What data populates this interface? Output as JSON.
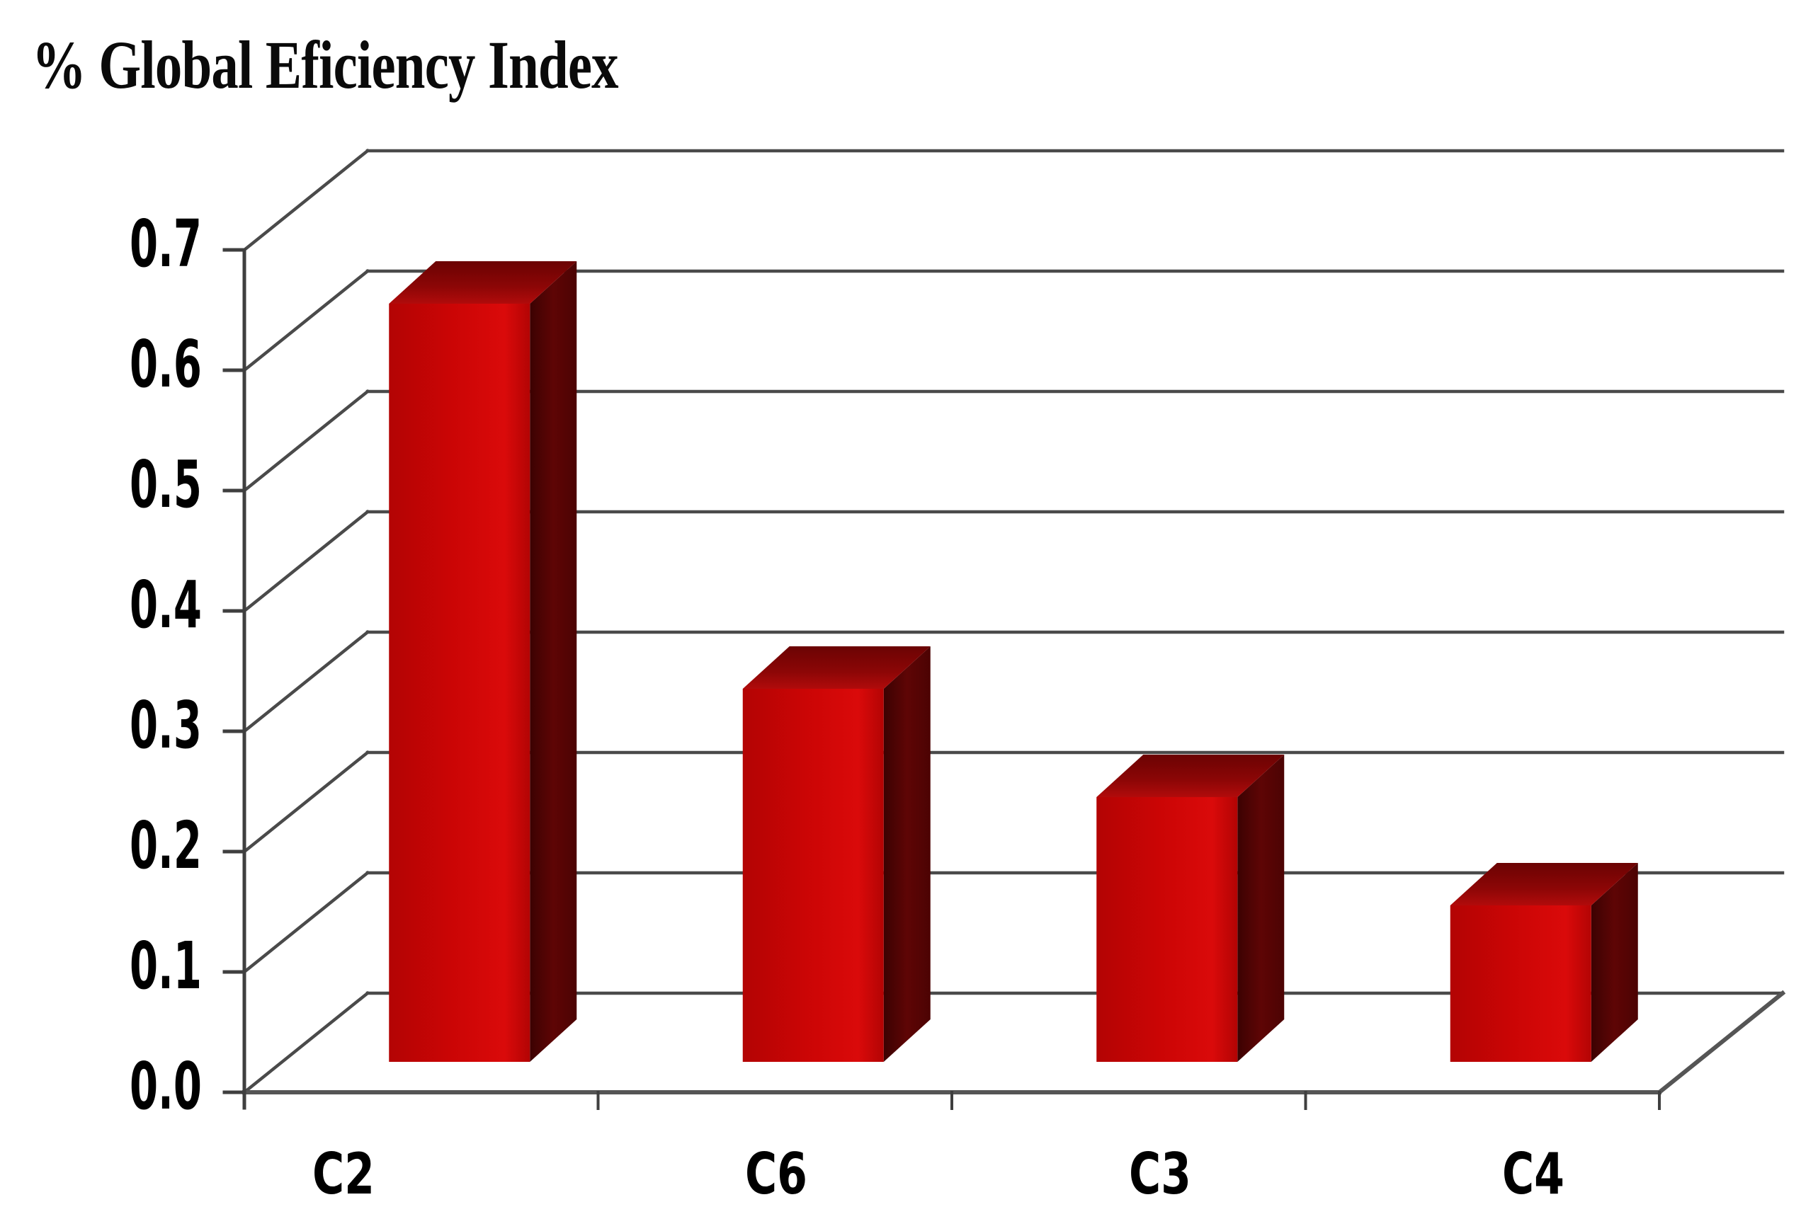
{
  "chart_data": {
    "type": "bar",
    "style": "3d-column",
    "title": "% Global Eficiency Index",
    "categories": [
      "C2",
      "C6",
      "C3",
      "C4"
    ],
    "values": [
      0.63,
      0.31,
      0.22,
      0.13
    ],
    "xlabel": "",
    "ylabel": "% Global Eficiency Index",
    "ylim": [
      0.0,
      0.7
    ],
    "ytick_step": 0.1,
    "ytick_labels": [
      "0.0",
      "0.1",
      "0.2",
      "0.3",
      "0.4",
      "0.5",
      "0.6",
      "0.7"
    ],
    "grid": true,
    "legend": false,
    "background": "#ffffff"
  },
  "colors": {
    "bar_front": "#cb0505",
    "bar_front_light": "#da0a0a",
    "bar_front_dark": "#b30404",
    "bar_side_dark": "#3c0202",
    "bar_side": "#5e0505",
    "bar_side_far": "#4c0303",
    "bar_top_front": "#b10b0b",
    "bar_top": "#8c0606",
    "bar_top_back": "#6b0303",
    "gridline": "#4a4a4a",
    "axis": "#3f3f3f",
    "floor_edge": "#555555",
    "text": "#000000"
  }
}
